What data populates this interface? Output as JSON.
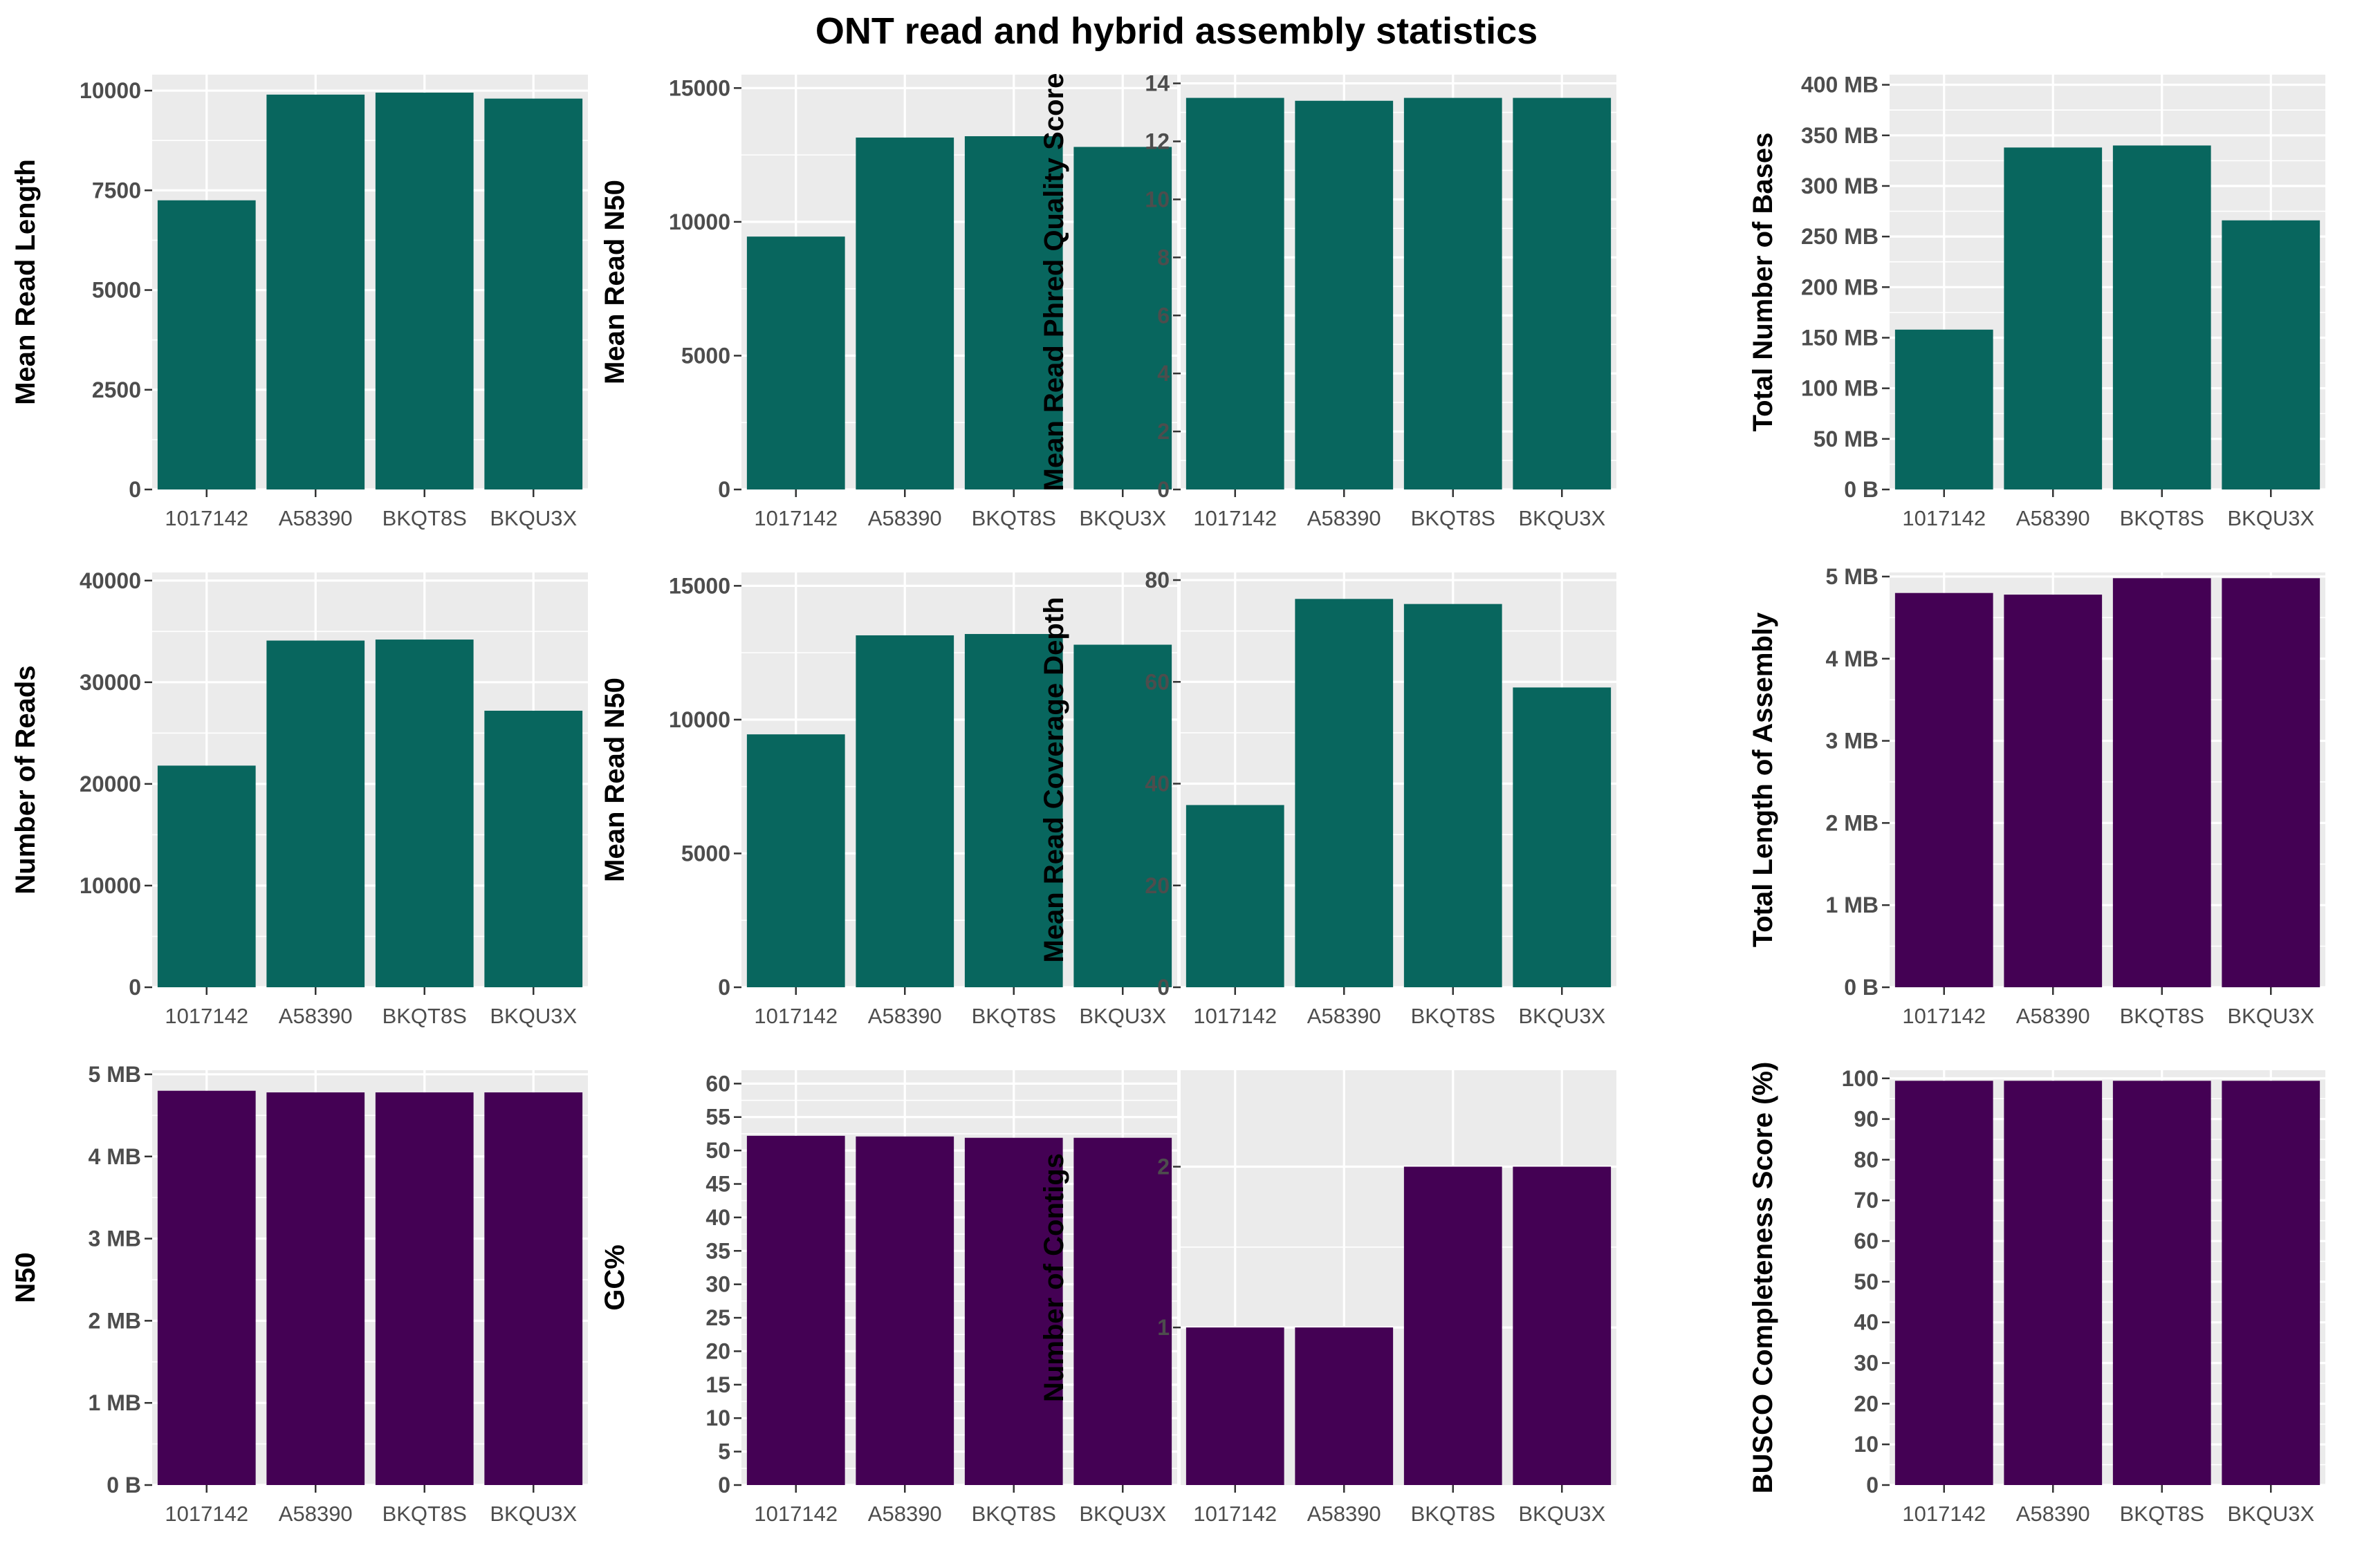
{
  "title": "ONT read and hybrid assembly statistics",
  "colors": {
    "read_stats": "#08665e",
    "assembly_stats": "#440154",
    "panel_bg": "#ebebeb",
    "grid": "#ffffff"
  },
  "chart_data": [
    {
      "type": "bar",
      "categories": [
        "1017142",
        "A58390",
        "BKQT8S",
        "BKQU3X"
      ],
      "values": [
        7250,
        9900,
        9950,
        9800
      ],
      "ylabel": "Mean Read Length",
      "ylim": [
        0,
        10400
      ],
      "yticks": [
        0,
        2500,
        5000,
        7500,
        10000
      ],
      "ytick_labels": [
        "0",
        "2500",
        "5000",
        "7500",
        "10000"
      ],
      "color": "#08665e"
    },
    {
      "type": "bar",
      "categories": [
        "1017142",
        "A58390",
        "BKQT8S",
        "BKQU3X"
      ],
      "values": [
        9450,
        13150,
        13200,
        12800
      ],
      "ylabel": "Mean Read N50",
      "ylim": [
        0,
        15500
      ],
      "yticks": [
        0,
        5000,
        10000,
        15000
      ],
      "ytick_labels": [
        "0",
        "5000",
        "10000",
        "15000"
      ],
      "color": "#08665e"
    },
    {
      "type": "bar",
      "categories": [
        "1017142",
        "A58390",
        "BKQT8S",
        "BKQU3X"
      ],
      "values": [
        13.5,
        13.4,
        13.5,
        13.5
      ],
      "ylabel": "Mean Read Phred Quality Score",
      "ylim": [
        0,
        14.3
      ],
      "yticks": [
        0,
        2,
        4,
        6,
        8,
        10,
        12,
        14
      ],
      "ytick_labels": [
        "0",
        "2",
        "4",
        "6",
        "8",
        "10",
        "12",
        "14"
      ],
      "color": "#08665e"
    },
    {
      "type": "bar",
      "categories": [
        "1017142",
        "A58390",
        "BKQT8S",
        "BKQU3X"
      ],
      "values": [
        158,
        338,
        340,
        266
      ],
      "ylabel": "Total Number of Bases",
      "ylim": [
        0,
        410
      ],
      "yticks": [
        0,
        50,
        100,
        150,
        200,
        250,
        300,
        350,
        400
      ],
      "ytick_labels": [
        "0 B",
        "50 MB",
        "100 MB",
        "150 MB",
        "200 MB",
        "250 MB",
        "300 MB",
        "350 MB",
        "400 MB"
      ],
      "color": "#08665e"
    },
    {
      "type": "bar",
      "categories": [
        "1017142",
        "A58390",
        "BKQT8S",
        "BKQU3X"
      ],
      "values": [
        21800,
        34100,
        34200,
        27200
      ],
      "ylabel": "Number of Reads",
      "ylim": [
        0,
        40800
      ],
      "yticks": [
        0,
        10000,
        20000,
        30000,
        40000
      ],
      "ytick_labels": [
        "0",
        "10000",
        "20000",
        "30000",
        "40000"
      ],
      "color": "#08665e"
    },
    {
      "type": "bar",
      "categories": [
        "1017142",
        "A58390",
        "BKQT8S",
        "BKQU3X"
      ],
      "values": [
        9450,
        13150,
        13200,
        12800
      ],
      "ylabel": "Mean Read N50",
      "ylim": [
        0,
        15500
      ],
      "yticks": [
        0,
        5000,
        10000,
        15000
      ],
      "ytick_labels": [
        "0",
        "5000",
        "10000",
        "15000"
      ],
      "color": "#08665e"
    },
    {
      "type": "bar",
      "categories": [
        "1017142",
        "A58390",
        "BKQT8S",
        "BKQU3X"
      ],
      "values": [
        35.8,
        76.3,
        75.3,
        58.9
      ],
      "ylabel": "Mean Read Coverage Depth",
      "ylim": [
        0,
        81.5
      ],
      "yticks": [
        0,
        20,
        40,
        60,
        80
      ],
      "ytick_labels": [
        "0",
        "20",
        "40",
        "60",
        "80"
      ],
      "color": "#08665e"
    },
    {
      "type": "bar",
      "categories": [
        "1017142",
        "A58390",
        "BKQT8S",
        "BKQU3X"
      ],
      "values": [
        4.8,
        4.78,
        4.98,
        4.98
      ],
      "ylabel": "Total Length of Assembly",
      "ylim": [
        0,
        5.05
      ],
      "yticks": [
        0,
        1,
        2,
        3,
        4,
        5
      ],
      "ytick_labels": [
        "0 B",
        "1 MB",
        "2 MB",
        "3 MB",
        "4 MB",
        "5 MB"
      ],
      "color": "#440154"
    },
    {
      "type": "bar",
      "categories": [
        "1017142",
        "A58390",
        "BKQT8S",
        "BKQU3X"
      ],
      "values": [
        4.8,
        4.78,
        4.78,
        4.78
      ],
      "ylabel": "N50",
      "ylim": [
        0,
        5.05
      ],
      "yticks": [
        0,
        1,
        2,
        3,
        4,
        5
      ],
      "ytick_labels": [
        "0 B",
        "1 MB",
        "2 MB",
        "3 MB",
        "4 MB",
        "5 MB"
      ],
      "color": "#440154"
    },
    {
      "type": "bar",
      "categories": [
        "1017142",
        "A58390",
        "BKQT8S",
        "BKQU3X"
      ],
      "values": [
        52.2,
        52.1,
        51.9,
        51.9
      ],
      "ylabel": "GC%",
      "ylim": [
        0,
        62
      ],
      "yticks": [
        0,
        5,
        10,
        15,
        20,
        25,
        30,
        35,
        40,
        45,
        50,
        55,
        60
      ],
      "ytick_labels": [
        "0",
        "5",
        "10",
        "15",
        "20",
        "25",
        "30",
        "35",
        "40",
        "45",
        "50",
        "55",
        "60"
      ],
      "color": "#440154"
    },
    {
      "type": "bar",
      "categories": [
        "1017142",
        "A58390",
        "BKQT8S",
        "BKQU3X"
      ],
      "values": [
        1,
        1,
        2,
        2
      ],
      "ylabel": "Number of Contigs",
      "ylim": [
        0.02,
        2.6
      ],
      "yticks": [
        1,
        2
      ],
      "ytick_labels": [
        "1",
        "2"
      ],
      "color": "#440154"
    },
    {
      "type": "bar",
      "categories": [
        "1017142",
        "A58390",
        "BKQT8S",
        "BKQU3X"
      ],
      "values": [
        99.4,
        99.4,
        99.4,
        99.4
      ],
      "ylabel": "BUSCO Completeness Score (%)",
      "ylim": [
        0,
        102
      ],
      "yticks": [
        0,
        10,
        20,
        30,
        40,
        50,
        60,
        70,
        80,
        90,
        100
      ],
      "ytick_labels": [
        "0",
        "10",
        "20",
        "30",
        "40",
        "50",
        "60",
        "70",
        "80",
        "90",
        "100"
      ],
      "color": "#440154"
    }
  ]
}
